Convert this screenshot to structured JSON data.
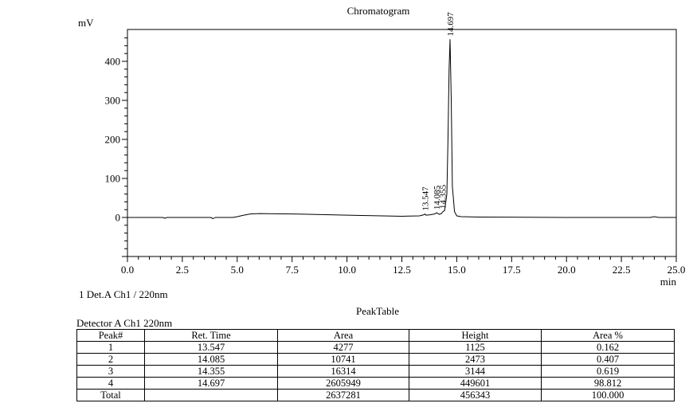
{
  "detector_line": "1 Det.A Ch1 / 220nm",
  "table_title": "PeakTable",
  "table_detector": "Detector A Ch1 220nm",
  "table": {
    "headers": [
      "Peak#",
      "Ret. Time",
      "Area",
      "Height",
      "Area %"
    ],
    "rows": [
      [
        "1",
        "13.547",
        "4277",
        "1125",
        "0.162"
      ],
      [
        "2",
        "14.085",
        "10741",
        "2473",
        "0.407"
      ],
      [
        "3",
        "14.355",
        "16314",
        "3144",
        "0.619"
      ],
      [
        "4",
        "14.697",
        "2605949",
        "449601",
        "98.812"
      ],
      [
        "Total",
        "",
        "2637281",
        "456343",
        "100.000"
      ]
    ]
  },
  "chart_data": {
    "type": "line",
    "title": "Chromatogram",
    "xlabel": "min",
    "ylabel": "mV",
    "xlim": [
      0,
      25
    ],
    "ylim": [
      -100,
      480
    ],
    "x_ticks": [
      "0.0",
      "2.5",
      "5.0",
      "7.5",
      "10.0",
      "12.5",
      "15.0",
      "17.5",
      "20.0",
      "22.5",
      "25.0"
    ],
    "y_ticks": [
      "0",
      "100",
      "200",
      "300",
      "400"
    ],
    "grid": false,
    "series": [
      {
        "color": "#000000",
        "x": [
          0,
          1.6,
          1.7,
          1.8,
          3.8,
          3.9,
          4.0,
          4.8,
          5.0,
          5.3,
          5.6,
          6.0,
          7.5,
          10.0,
          12.5,
          13.3,
          13.5,
          13.55,
          13.6,
          13.8,
          14.0,
          14.085,
          14.2,
          14.3,
          14.355,
          14.45,
          14.55,
          14.6,
          14.65,
          14.697,
          14.75,
          14.8,
          14.9,
          15.0,
          15.2,
          16.0,
          20.0,
          23.8,
          24.0,
          24.2,
          25.0
        ],
        "y": [
          0,
          0,
          -2,
          0,
          0,
          -3,
          0,
          0,
          2,
          6,
          9,
          10,
          9,
          6,
          3,
          4,
          7,
          9,
          6,
          7,
          9,
          12,
          8,
          10,
          14,
          18,
          60,
          200,
          380,
          456,
          300,
          80,
          15,
          4,
          2,
          1,
          0,
          0,
          2,
          0,
          0
        ]
      }
    ],
    "peak_labels": [
      {
        "x": 13.547,
        "y": 9,
        "text": "13.547"
      },
      {
        "x": 14.085,
        "y": 12,
        "text": "14.085"
      },
      {
        "x": 14.355,
        "y": 14,
        "text": "14.355"
      },
      {
        "x": 14.697,
        "y": 456,
        "text": "14.697"
      }
    ]
  }
}
